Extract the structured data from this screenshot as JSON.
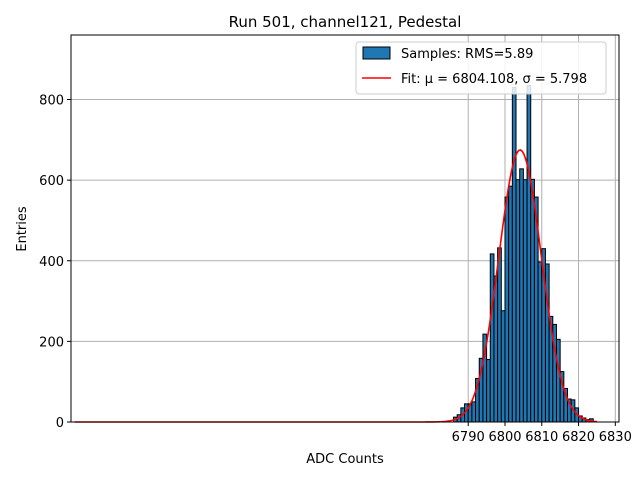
{
  "chart_data": {
    "type": "bar",
    "title": "Run 501, channel121, Pedestal",
    "xlabel": "ADC Counts",
    "ylabel": "Entries",
    "xlim": [
      6682,
      6831
    ],
    "ylim": [
      0,
      960
    ],
    "xticks": [
      6790,
      6800,
      6810,
      6820,
      6830
    ],
    "yticks": [
      0,
      200,
      400,
      600,
      800
    ],
    "grid": true,
    "legend_position": "top-right",
    "colors": {
      "bars": "#1f77b4",
      "bar_edge": "#000000",
      "fit": "#ff0000"
    },
    "series": [
      {
        "name": "Samples: RMS=5.89",
        "kind": "histogram",
        "bin_width": 1,
        "bins": [
          {
            "x0": 6786,
            "count": 12
          },
          {
            "x0": 6787,
            "count": 18
          },
          {
            "x0": 6788,
            "count": 35
          },
          {
            "x0": 6789,
            "count": 45
          },
          {
            "x0": 6790,
            "count": 45
          },
          {
            "x0": 6791,
            "count": 50
          },
          {
            "x0": 6792,
            "count": 108
          },
          {
            "x0": 6793,
            "count": 158
          },
          {
            "x0": 6794,
            "count": 218
          },
          {
            "x0": 6795,
            "count": 155
          },
          {
            "x0": 6796,
            "count": 417
          },
          {
            "x0": 6797,
            "count": 362
          },
          {
            "x0": 6798,
            "count": 432
          },
          {
            "x0": 6799,
            "count": 276
          },
          {
            "x0": 6800,
            "count": 558
          },
          {
            "x0": 6801,
            "count": 585
          },
          {
            "x0": 6802,
            "count": 830
          },
          {
            "x0": 6803,
            "count": 601
          },
          {
            "x0": 6804,
            "count": 628
          },
          {
            "x0": 6805,
            "count": 601
          },
          {
            "x0": 6806,
            "count": 835
          },
          {
            "x0": 6807,
            "count": 602
          },
          {
            "x0": 6808,
            "count": 558
          },
          {
            "x0": 6809,
            "count": 397
          },
          {
            "x0": 6810,
            "count": 430
          },
          {
            "x0": 6811,
            "count": 392
          },
          {
            "x0": 6812,
            "count": 262
          },
          {
            "x0": 6813,
            "count": 242
          },
          {
            "x0": 6814,
            "count": 205
          },
          {
            "x0": 6815,
            "count": 125
          },
          {
            "x0": 6816,
            "count": 83
          },
          {
            "x0": 6817,
            "count": 57
          },
          {
            "x0": 6818,
            "count": 55
          },
          {
            "x0": 6819,
            "count": 35
          },
          {
            "x0": 6820,
            "count": 15
          },
          {
            "x0": 6821,
            "count": 10
          },
          {
            "x0": 6822,
            "count": 6
          },
          {
            "x0": 6823,
            "count": 8
          }
        ]
      },
      {
        "name": "Fit: μ = 6804.108, σ = 5.798",
        "kind": "gaussian",
        "mu": 6804.108,
        "sigma": 5.798,
        "amplitude": 675,
        "x_range": [
          6683,
          6825
        ]
      }
    ]
  }
}
